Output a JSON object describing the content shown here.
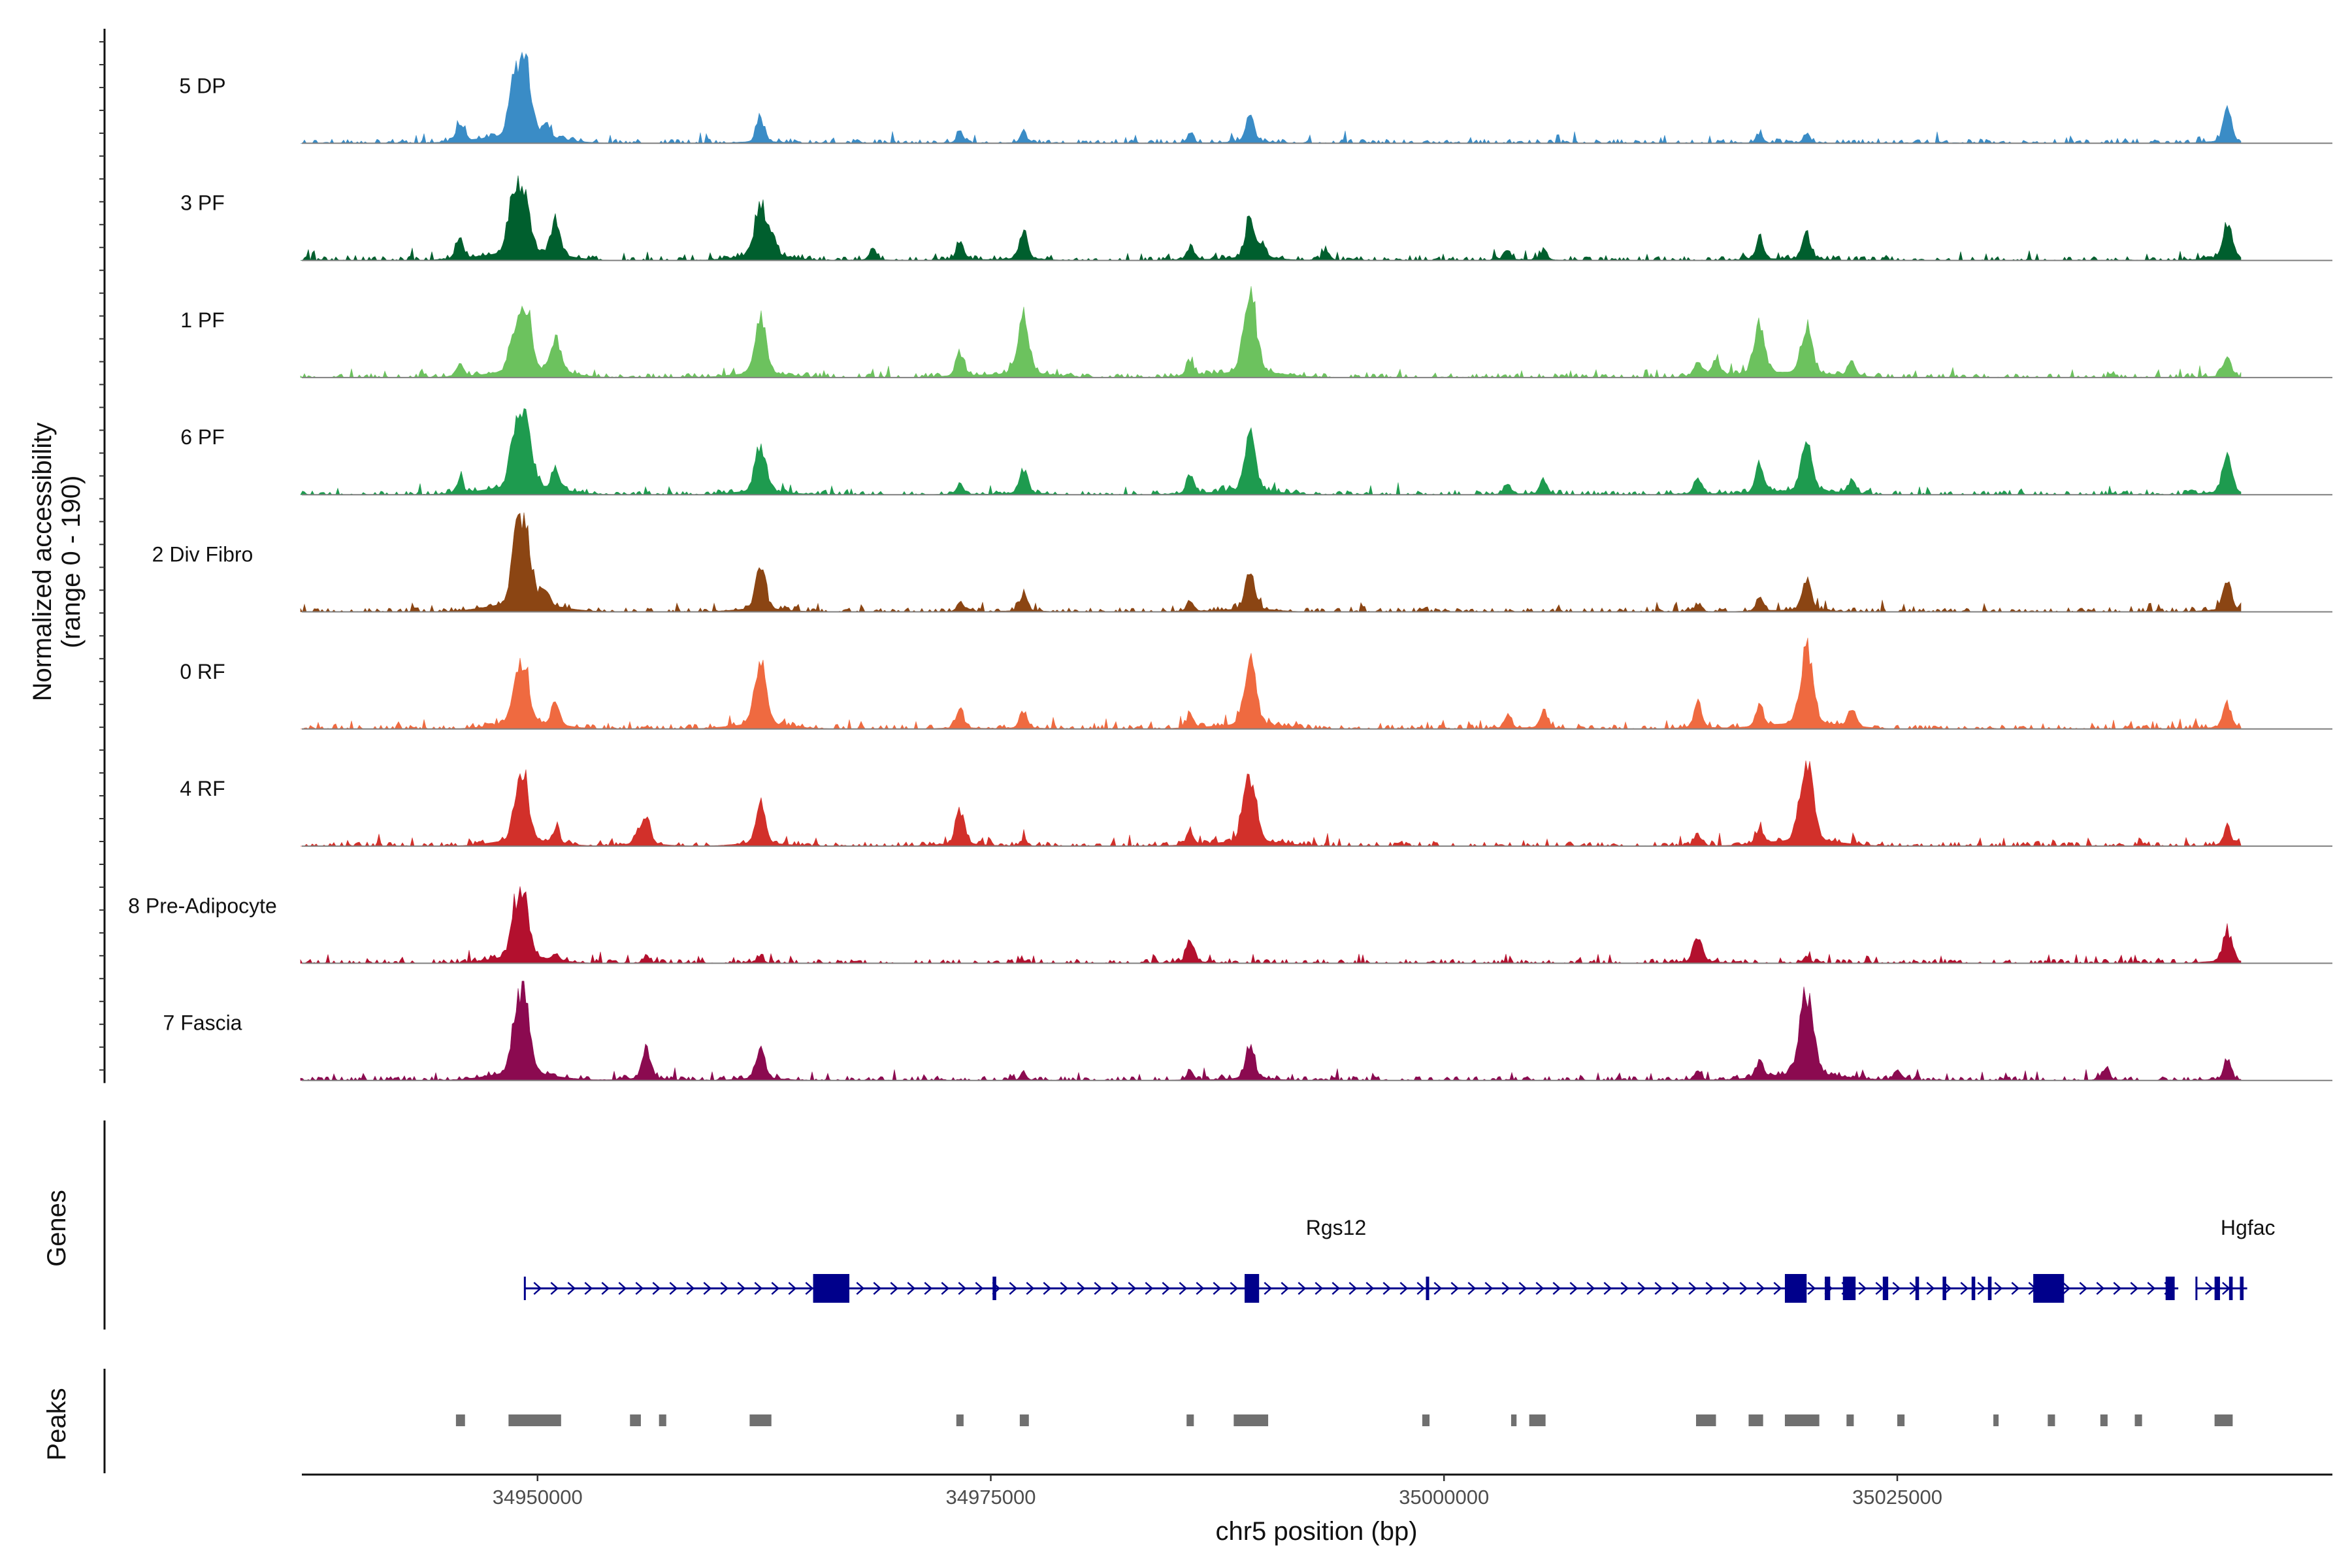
{
  "chart_data": {
    "type": "coverage",
    "chromosome": "chr5",
    "xlim": [
      34937000,
      35049000
    ],
    "xlabel": "chr5 position (bp)",
    "x_ticks": [
      34950000,
      34975000,
      35000000,
      35025000
    ],
    "x_tick_labels": [
      "34950000",
      "34975000",
      "35000000",
      "35025000"
    ],
    "ylabel_line1": "Normalized accessibility",
    "ylabel_line2": "(range 0 - 190)",
    "ylim": [
      0,
      190
    ],
    "genes_label": "Genes",
    "peaks_label": "Peaks",
    "series": [
      {
        "name": "5 DP",
        "color": "#3A8CC6",
        "peaks": [
          [
            34945700,
            40
          ],
          [
            34948600,
            70
          ],
          [
            34949200,
            185
          ],
          [
            34950500,
            30
          ],
          [
            34962300,
            55
          ],
          [
            34973300,
            22
          ],
          [
            34976800,
            22
          ],
          [
            34986000,
            18
          ],
          [
            34989300,
            60
          ],
          [
            35017400,
            20
          ],
          [
            35020000,
            22
          ],
          [
            35043200,
            65
          ]
        ]
      },
      {
        "name": "3 PF",
        "color": "#005F2E",
        "peaks": [
          [
            34945700,
            45
          ],
          [
            34948600,
            100
          ],
          [
            34949200,
            145
          ],
          [
            34951000,
            75
          ],
          [
            34962300,
            120
          ],
          [
            34963000,
            40
          ],
          [
            34968500,
            25
          ],
          [
            34973300,
            40
          ],
          [
            34976800,
            60
          ],
          [
            34986000,
            30
          ],
          [
            34989300,
            85
          ],
          [
            34990000,
            30
          ],
          [
            34993500,
            22
          ],
          [
            35003500,
            25
          ],
          [
            35005500,
            22
          ],
          [
            35017400,
            45
          ],
          [
            35020000,
            55
          ],
          [
            35043200,
            80
          ]
        ]
      },
      {
        "name": "1 PF",
        "color": "#6CC25E",
        "peaks": [
          [
            34945700,
            30
          ],
          [
            34948600,
            60
          ],
          [
            34949300,
            145
          ],
          [
            34951000,
            85
          ],
          [
            34962300,
            125
          ],
          [
            34973300,
            55
          ],
          [
            34976800,
            130
          ],
          [
            34986000,
            35
          ],
          [
            34989300,
            165
          ],
          [
            35014000,
            30
          ],
          [
            35015000,
            40
          ],
          [
            35017400,
            110
          ],
          [
            35020000,
            115
          ],
          [
            35022500,
            35
          ],
          [
            35043200,
            45
          ]
        ]
      },
      {
        "name": "6 PF",
        "color": "#1E9B4F",
        "peaks": [
          [
            34945700,
            30
          ],
          [
            34948600,
            60
          ],
          [
            34949200,
            185
          ],
          [
            34951000,
            45
          ],
          [
            34962300,
            110
          ],
          [
            34973300,
            25
          ],
          [
            34976800,
            55
          ],
          [
            34986000,
            40
          ],
          [
            34989300,
            125
          ],
          [
            35003500,
            25
          ],
          [
            35005500,
            30
          ],
          [
            35014000,
            40
          ],
          [
            35017400,
            60
          ],
          [
            35020000,
            115
          ],
          [
            35022500,
            30
          ],
          [
            35043200,
            80
          ]
        ]
      },
      {
        "name": "2 Div Fibro",
        "color": "#8B4513",
        "peaks": [
          [
            34948700,
            60
          ],
          [
            34949200,
            190
          ],
          [
            34950500,
            30
          ],
          [
            34962300,
            95
          ],
          [
            34973300,
            18
          ],
          [
            34976800,
            40
          ],
          [
            34986000,
            25
          ],
          [
            34989300,
            90
          ],
          [
            35014000,
            18
          ],
          [
            35017400,
            30
          ],
          [
            35020000,
            70
          ],
          [
            35043200,
            65
          ]
        ]
      },
      {
        "name": "0 RF",
        "color": "#EF6A40",
        "peaks": [
          [
            34948700,
            50
          ],
          [
            34949200,
            140
          ],
          [
            34951000,
            50
          ],
          [
            34962300,
            140
          ],
          [
            34973300,
            40
          ],
          [
            34976800,
            40
          ],
          [
            34986000,
            30
          ],
          [
            34989300,
            140
          ],
          [
            35003500,
            30
          ],
          [
            35005500,
            40
          ],
          [
            35014000,
            55
          ],
          [
            35017400,
            45
          ],
          [
            35020000,
            160
          ],
          [
            35022500,
            40
          ],
          [
            35043200,
            55
          ]
        ]
      },
      {
        "name": "4 RF",
        "color": "#D2302A",
        "peaks": [
          [
            34948700,
            40
          ],
          [
            34949200,
            140
          ],
          [
            34951000,
            30
          ],
          [
            34955500,
            25
          ],
          [
            34956000,
            55
          ],
          [
            34962300,
            90
          ],
          [
            34973300,
            75
          ],
          [
            34976800,
            15
          ],
          [
            34986000,
            30
          ],
          [
            34989300,
            150
          ],
          [
            35014000,
            25
          ],
          [
            35017400,
            35
          ],
          [
            35020000,
            170
          ],
          [
            35043200,
            40
          ]
        ]
      },
      {
        "name": "8 Pre-Adipocyte",
        "color": "#B3102E",
        "peaks": [
          [
            34948700,
            70
          ],
          [
            34949200,
            140
          ],
          [
            34951000,
            15
          ],
          [
            34956000,
            15
          ],
          [
            34962300,
            15
          ],
          [
            34986000,
            50
          ],
          [
            35014000,
            60
          ],
          [
            35020000,
            15
          ],
          [
            35043200,
            70
          ]
        ]
      },
      {
        "name": "7 Fascia",
        "color": "#8B0A50",
        "peaks": [
          [
            34948700,
            60
          ],
          [
            34949200,
            175
          ],
          [
            34956000,
            65
          ],
          [
            34962300,
            70
          ],
          [
            34976800,
            15
          ],
          [
            34986000,
            20
          ],
          [
            34989300,
            75
          ],
          [
            35014000,
            20
          ],
          [
            35017400,
            35
          ],
          [
            35020000,
            185
          ],
          [
            35025000,
            25
          ],
          [
            35036500,
            25
          ],
          [
            35043200,
            40
          ]
        ]
      }
    ],
    "genes": [
      {
        "name": "Rgs12",
        "color": "#00008B",
        "start": 34949300,
        "end": 35040500,
        "exons": [
          [
            34965200,
            34967200
          ],
          [
            34975100,
            34975300
          ],
          [
            34989000,
            34989800
          ],
          [
            34999000,
            34999150
          ],
          [
            35018800,
            35020000
          ],
          [
            35021000,
            35021300
          ],
          [
            35022000,
            35022700
          ],
          [
            35024200,
            35024500
          ],
          [
            35026000,
            35026200
          ],
          [
            35027500,
            35027700
          ],
          [
            35029100,
            35029300
          ],
          [
            35030000,
            35030200
          ],
          [
            35032500,
            35034200
          ],
          [
            35039800,
            35040300
          ]
        ]
      },
      {
        "name": "Hgfac",
        "color": "#00008B",
        "start": 35041500,
        "end": 35044300,
        "exons": [
          [
            35042500,
            35042800
          ],
          [
            35043300,
            35043500
          ],
          [
            35043900,
            35044100
          ]
        ]
      }
    ],
    "peak_regions": [
      [
        34945500,
        34946000
      ],
      [
        34948400,
        34951300
      ],
      [
        34955100,
        34955700
      ],
      [
        34956700,
        34957100
      ],
      [
        34961700,
        34962900
      ],
      [
        34973100,
        34973500
      ],
      [
        34976600,
        34977100
      ],
      [
        34985800,
        34986200
      ],
      [
        34988400,
        34990300
      ],
      [
        34998800,
        34999200
      ],
      [
        35003700,
        35004000
      ],
      [
        35004700,
        35005600
      ],
      [
        35013900,
        35015000
      ],
      [
        35016800,
        35017600
      ],
      [
        35018800,
        35020700
      ],
      [
        35022200,
        35022600
      ],
      [
        35025000,
        35025400
      ],
      [
        35030300,
        35030500
      ],
      [
        35033300,
        35033700
      ],
      [
        35036200,
        35036600
      ],
      [
        35038100,
        35038500
      ],
      [
        35042500,
        35043500
      ]
    ]
  }
}
